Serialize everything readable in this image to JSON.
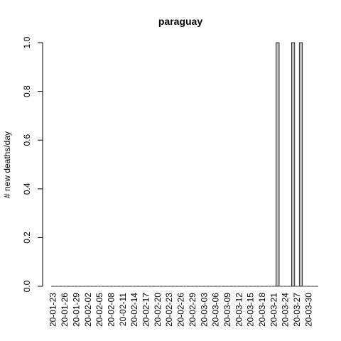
{
  "chart_data": {
    "type": "bar",
    "title": "paraguay",
    "xlabel": "",
    "ylabel": "# new deaths/day",
    "ylim": [
      0,
      1
    ],
    "y_ticks": [
      "0.0",
      "0.2",
      "0.4",
      "0.6",
      "0.8",
      "1.0"
    ],
    "x_tick_labels": [
      "20-01-23",
      "20-01-26",
      "20-01-29",
      "20-02-02",
      "20-02-05",
      "20-02-08",
      "20-02-11",
      "20-02-14",
      "20-02-17",
      "20-02-20",
      "20-02-23",
      "20-02-26",
      "20-02-29",
      "20-03-03",
      "20-03-06",
      "20-03-09",
      "20-03-12",
      "20-03-15",
      "20-03-18",
      "20-03-21",
      "20-03-24",
      "20-03-27",
      "20-03-30"
    ],
    "first_date": "2020-01-22",
    "last_date": "2020-03-30",
    "nonzero_values": [
      {
        "date": "2020-03-20",
        "value": 1
      },
      {
        "date": "2020-03-24",
        "value": 1
      },
      {
        "date": "2020-03-26",
        "value": 1
      }
    ],
    "bar_color": "#bebebe",
    "bar_border_color": "#000000",
    "grid": false
  }
}
